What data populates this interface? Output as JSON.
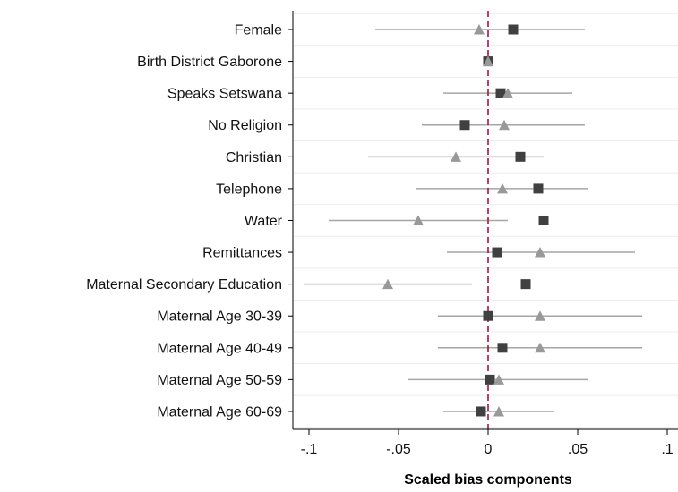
{
  "chart_data": {
    "type": "scatter",
    "title": "",
    "xlabel": "Scaled bias components",
    "ylabel": "",
    "xlim": [
      -0.1,
      0.1
    ],
    "x_ticks": [
      -0.1,
      -0.05,
      0,
      0.05,
      0.1
    ],
    "x_tick_labels": [
      "-.1",
      "-.05",
      "0",
      ".05",
      ".1"
    ],
    "reference_line": {
      "x": 0,
      "style": "dashed",
      "color": "#b0103f"
    },
    "grid": "horizontal",
    "legend": "none",
    "categories": [
      "Female",
      "Birth District Gaborone",
      "Speaks Setswana",
      "No Religion",
      "Christian",
      "Telephone",
      "Water",
      "Remittances",
      "Maternal Secondary Education",
      "Maternal Age 30-39",
      "Maternal Age 40-49",
      "Maternal Age 50-59",
      "Maternal Age 60-69"
    ],
    "series": [
      {
        "marker": "square",
        "color": "#404040",
        "values": [
          0.014,
          0.0,
          0.007,
          -0.013,
          0.018,
          0.028,
          0.031,
          0.005,
          0.021,
          0.0,
          0.008,
          0.001,
          -0.004
        ]
      },
      {
        "marker": "triangle",
        "color": "#999999",
        "values": [
          -0.005,
          0.0,
          0.011,
          0.009,
          -0.018,
          0.008,
          -0.039,
          0.029,
          -0.056,
          0.029,
          0.029,
          0.006,
          0.006
        ]
      }
    ],
    "intervals": {
      "color": "#a6a6a6",
      "low": [
        -0.063,
        null,
        -0.025,
        -0.037,
        -0.067,
        -0.04,
        -0.089,
        -0.023,
        -0.103,
        -0.028,
        -0.028,
        -0.045,
        -0.025
      ],
      "high": [
        0.054,
        null,
        0.047,
        0.054,
        0.031,
        0.056,
        0.011,
        0.082,
        -0.009,
        0.086,
        0.086,
        0.056,
        0.037
      ]
    }
  }
}
